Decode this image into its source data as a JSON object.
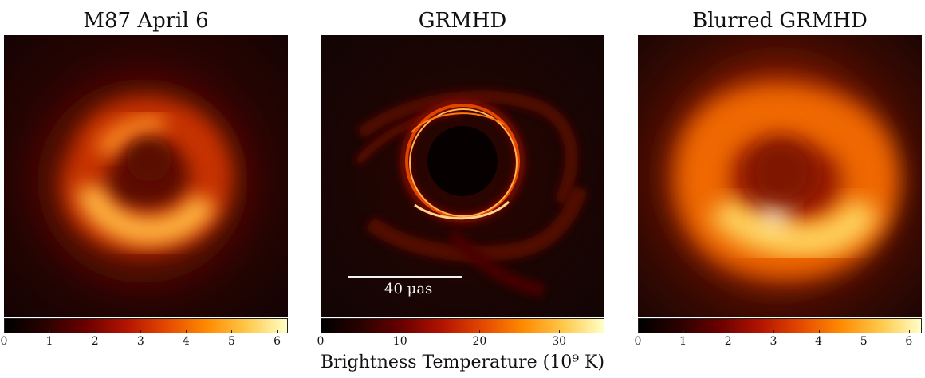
{
  "colors": {
    "colormap": [
      "#000000",
      "#2a0200",
      "#6a0000",
      "#b21300",
      "#e44800",
      "#ff8a00",
      "#ffc84a",
      "#ffffc8"
    ]
  },
  "panels": [
    {
      "title": "M87 April 6",
      "colorbar": {
        "min": 0,
        "max": 6.2,
        "ticks": [
          "0",
          "1",
          "2",
          "3",
          "4",
          "5",
          "6"
        ]
      }
    },
    {
      "title": "GRMHD",
      "scale_bar": {
        "label": "40 μas"
      },
      "colorbar": {
        "min": 0,
        "max": 35.5,
        "ticks": [
          "0",
          "10",
          "20",
          "30"
        ]
      }
    },
    {
      "title": "Blurred GRMHD",
      "colorbar": {
        "min": 0,
        "max": 6.25,
        "ticks": [
          "0",
          "1",
          "2",
          "3",
          "4",
          "5",
          "6"
        ]
      }
    }
  ],
  "shared": {
    "xlabel": "Brightness Temperature (10⁹ K)"
  }
}
